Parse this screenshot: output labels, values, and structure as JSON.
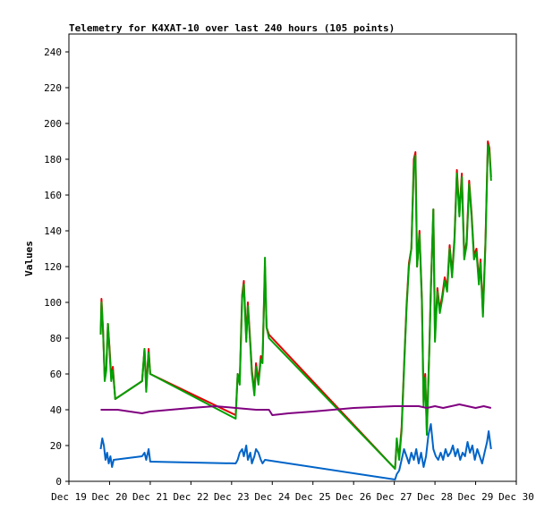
{
  "chart_data": {
    "type": "line",
    "title": "Telemetry for K4XAT-10 over last 240 hours (105 points)",
    "xlabel": "",
    "ylabel": "Values",
    "xlim": [
      0,
      11
    ],
    "ylim": [
      0,
      250
    ],
    "x_ticks": [
      {
        "value": 0,
        "label": "Dec 19"
      },
      {
        "value": 1,
        "label": "Dec 20"
      },
      {
        "value": 2,
        "label": "Dec 21"
      },
      {
        "value": 3,
        "label": "Dec 22"
      },
      {
        "value": 4,
        "label": "Dec 23"
      },
      {
        "value": 5,
        "label": "Dec 24"
      },
      {
        "value": 6,
        "label": "Dec 25"
      },
      {
        "value": 7,
        "label": "Dec 26"
      },
      {
        "value": 8,
        "label": "Dec 27"
      },
      {
        "value": 9,
        "label": "Dec 28"
      },
      {
        "value": 10,
        "label": "Dec 29"
      },
      {
        "value": 11,
        "label": "Dec 30"
      }
    ],
    "y_ticks": [
      0,
      20,
      40,
      60,
      80,
      100,
      120,
      140,
      160,
      180,
      200,
      220,
      240
    ],
    "grid": false,
    "legend": "none",
    "series": [
      {
        "color": "#e00000",
        "points": [
          [
            0.78,
            82
          ],
          [
            0.8,
            102
          ],
          [
            0.84,
            84
          ],
          [
            0.88,
            58
          ],
          [
            0.92,
            64
          ],
          [
            0.96,
            88
          ],
          [
            1.0,
            74
          ],
          [
            1.04,
            58
          ],
          [
            1.08,
            64
          ],
          [
            1.14,
            46
          ],
          [
            1.8,
            56
          ],
          [
            1.86,
            74
          ],
          [
            1.9,
            52
          ],
          [
            1.96,
            74
          ],
          [
            2.0,
            60
          ],
          [
            4.1,
            37
          ],
          [
            4.15,
            60
          ],
          [
            4.2,
            56
          ],
          [
            4.26,
            104
          ],
          [
            4.3,
            112
          ],
          [
            4.36,
            80
          ],
          [
            4.4,
            100
          ],
          [
            4.46,
            78
          ],
          [
            4.5,
            62
          ],
          [
            4.56,
            50
          ],
          [
            4.6,
            66
          ],
          [
            4.66,
            56
          ],
          [
            4.72,
            70
          ],
          [
            4.76,
            68
          ],
          [
            4.82,
            120
          ],
          [
            4.86,
            86
          ],
          [
            4.92,
            82
          ],
          [
            8.02,
            7
          ],
          [
            8.06,
            22
          ],
          [
            8.12,
            14
          ],
          [
            8.18,
            30
          ],
          [
            8.24,
            64
          ],
          [
            8.3,
            98
          ],
          [
            8.36,
            122
          ],
          [
            8.42,
            130
          ],
          [
            8.48,
            180
          ],
          [
            8.52,
            184
          ],
          [
            8.56,
            120
          ],
          [
            8.62,
            140
          ],
          [
            8.68,
            102
          ],
          [
            8.72,
            44
          ],
          [
            8.76,
            60
          ],
          [
            8.8,
            28
          ],
          [
            8.86,
            72
          ],
          [
            8.9,
            108
          ],
          [
            8.96,
            152
          ],
          [
            9.0,
            80
          ],
          [
            9.06,
            108
          ],
          [
            9.12,
            96
          ],
          [
            9.18,
            104
          ],
          [
            9.24,
            114
          ],
          [
            9.3,
            108
          ],
          [
            9.36,
            132
          ],
          [
            9.42,
            116
          ],
          [
            9.48,
            136
          ],
          [
            9.54,
            174
          ],
          [
            9.6,
            150
          ],
          [
            9.66,
            172
          ],
          [
            9.72,
            126
          ],
          [
            9.78,
            134
          ],
          [
            9.84,
            168
          ],
          [
            9.9,
            150
          ],
          [
            9.96,
            126
          ],
          [
            10.02,
            130
          ],
          [
            10.08,
            112
          ],
          [
            10.12,
            124
          ],
          [
            10.18,
            94
          ],
          [
            10.24,
            134
          ],
          [
            10.3,
            190
          ],
          [
            10.34,
            186
          ],
          [
            10.38,
            170
          ]
        ]
      },
      {
        "color": "#00a000",
        "points": [
          [
            0.78,
            82
          ],
          [
            0.8,
            100
          ],
          [
            0.84,
            84
          ],
          [
            0.88,
            56
          ],
          [
            0.92,
            62
          ],
          [
            0.96,
            88
          ],
          [
            1.0,
            72
          ],
          [
            1.04,
            56
          ],
          [
            1.08,
            62
          ],
          [
            1.14,
            46
          ],
          [
            1.8,
            56
          ],
          [
            1.86,
            74
          ],
          [
            1.9,
            50
          ],
          [
            1.96,
            72
          ],
          [
            2.0,
            60
          ],
          [
            4.1,
            35
          ],
          [
            4.15,
            60
          ],
          [
            4.2,
            54
          ],
          [
            4.26,
            102
          ],
          [
            4.3,
            110
          ],
          [
            4.36,
            78
          ],
          [
            4.4,
            98
          ],
          [
            4.46,
            76
          ],
          [
            4.5,
            60
          ],
          [
            4.56,
            48
          ],
          [
            4.6,
            64
          ],
          [
            4.66,
            54
          ],
          [
            4.72,
            68
          ],
          [
            4.76,
            66
          ],
          [
            4.82,
            125
          ],
          [
            4.86,
            86
          ],
          [
            4.92,
            80
          ],
          [
            8.02,
            7
          ],
          [
            8.06,
            24
          ],
          [
            8.12,
            12
          ],
          [
            8.18,
            28
          ],
          [
            8.24,
            62
          ],
          [
            8.3,
            96
          ],
          [
            8.36,
            120
          ],
          [
            8.42,
            130
          ],
          [
            8.48,
            176
          ],
          [
            8.52,
            182
          ],
          [
            8.56,
            120
          ],
          [
            8.62,
            138
          ],
          [
            8.68,
            100
          ],
          [
            8.72,
            42
          ],
          [
            8.76,
            58
          ],
          [
            8.8,
            26
          ],
          [
            8.86,
            72
          ],
          [
            8.9,
            106
          ],
          [
            8.96,
            152
          ],
          [
            9.0,
            78
          ],
          [
            9.06,
            106
          ],
          [
            9.12,
            94
          ],
          [
            9.18,
            102
          ],
          [
            9.24,
            112
          ],
          [
            9.3,
            106
          ],
          [
            9.36,
            130
          ],
          [
            9.42,
            114
          ],
          [
            9.48,
            134
          ],
          [
            9.54,
            172
          ],
          [
            9.6,
            148
          ],
          [
            9.66,
            170
          ],
          [
            9.72,
            124
          ],
          [
            9.78,
            132
          ],
          [
            9.84,
            166
          ],
          [
            9.9,
            148
          ],
          [
            9.96,
            124
          ],
          [
            10.02,
            128
          ],
          [
            10.08,
            110
          ],
          [
            10.12,
            122
          ],
          [
            10.18,
            92
          ],
          [
            10.24,
            132
          ],
          [
            10.3,
            188
          ],
          [
            10.34,
            184
          ],
          [
            10.38,
            168
          ]
        ]
      },
      {
        "color": "#800080",
        "points": [
          [
            0.78,
            40
          ],
          [
            1.2,
            40
          ],
          [
            1.8,
            38
          ],
          [
            2.0,
            39
          ],
          [
            3.0,
            41
          ],
          [
            3.6,
            42
          ],
          [
            4.1,
            41
          ],
          [
            4.6,
            40
          ],
          [
            4.92,
            40
          ],
          [
            5.0,
            37
          ],
          [
            5.4,
            38
          ],
          [
            6.0,
            39
          ],
          [
            7.0,
            41
          ],
          [
            8.0,
            42
          ],
          [
            8.6,
            42
          ],
          [
            8.8,
            41
          ],
          [
            9.0,
            42
          ],
          [
            9.2,
            41
          ],
          [
            9.4,
            42
          ],
          [
            9.6,
            43
          ],
          [
            9.8,
            42
          ],
          [
            10.0,
            41
          ],
          [
            10.2,
            42
          ],
          [
            10.38,
            41
          ]
        ]
      },
      {
        "color": "#0064c8",
        "points": [
          [
            0.78,
            18
          ],
          [
            0.82,
            24
          ],
          [
            0.86,
            20
          ],
          [
            0.9,
            12
          ],
          [
            0.94,
            16
          ],
          [
            0.98,
            10
          ],
          [
            1.02,
            14
          ],
          [
            1.06,
            8
          ],
          [
            1.1,
            12
          ],
          [
            1.8,
            14
          ],
          [
            1.86,
            16
          ],
          [
            1.9,
            12
          ],
          [
            1.96,
            18
          ],
          [
            2.0,
            11
          ],
          [
            4.1,
            10
          ],
          [
            4.15,
            12
          ],
          [
            4.2,
            16
          ],
          [
            4.26,
            18
          ],
          [
            4.3,
            14
          ],
          [
            4.36,
            20
          ],
          [
            4.4,
            12
          ],
          [
            4.46,
            16
          ],
          [
            4.5,
            10
          ],
          [
            4.56,
            14
          ],
          [
            4.6,
            18
          ],
          [
            4.66,
            16
          ],
          [
            4.72,
            12
          ],
          [
            4.76,
            10
          ],
          [
            4.82,
            12
          ],
          [
            8.02,
            1
          ],
          [
            8.06,
            4
          ],
          [
            8.12,
            6
          ],
          [
            8.18,
            12
          ],
          [
            8.24,
            18
          ],
          [
            8.3,
            14
          ],
          [
            8.36,
            10
          ],
          [
            8.42,
            16
          ],
          [
            8.48,
            12
          ],
          [
            8.54,
            18
          ],
          [
            8.6,
            10
          ],
          [
            8.66,
            16
          ],
          [
            8.72,
            8
          ],
          [
            8.78,
            14
          ],
          [
            8.84,
            26
          ],
          [
            8.9,
            32
          ],
          [
            8.96,
            18
          ],
          [
            9.02,
            14
          ],
          [
            9.08,
            12
          ],
          [
            9.14,
            16
          ],
          [
            9.2,
            12
          ],
          [
            9.26,
            18
          ],
          [
            9.32,
            14
          ],
          [
            9.38,
            16
          ],
          [
            9.44,
            20
          ],
          [
            9.5,
            14
          ],
          [
            9.56,
            18
          ],
          [
            9.62,
            12
          ],
          [
            9.68,
            16
          ],
          [
            9.74,
            14
          ],
          [
            9.8,
            22
          ],
          [
            9.86,
            16
          ],
          [
            9.92,
            20
          ],
          [
            9.98,
            12
          ],
          [
            10.04,
            18
          ],
          [
            10.1,
            14
          ],
          [
            10.16,
            10
          ],
          [
            10.22,
            16
          ],
          [
            10.28,
            22
          ],
          [
            10.32,
            28
          ],
          [
            10.38,
            18
          ]
        ]
      }
    ]
  }
}
